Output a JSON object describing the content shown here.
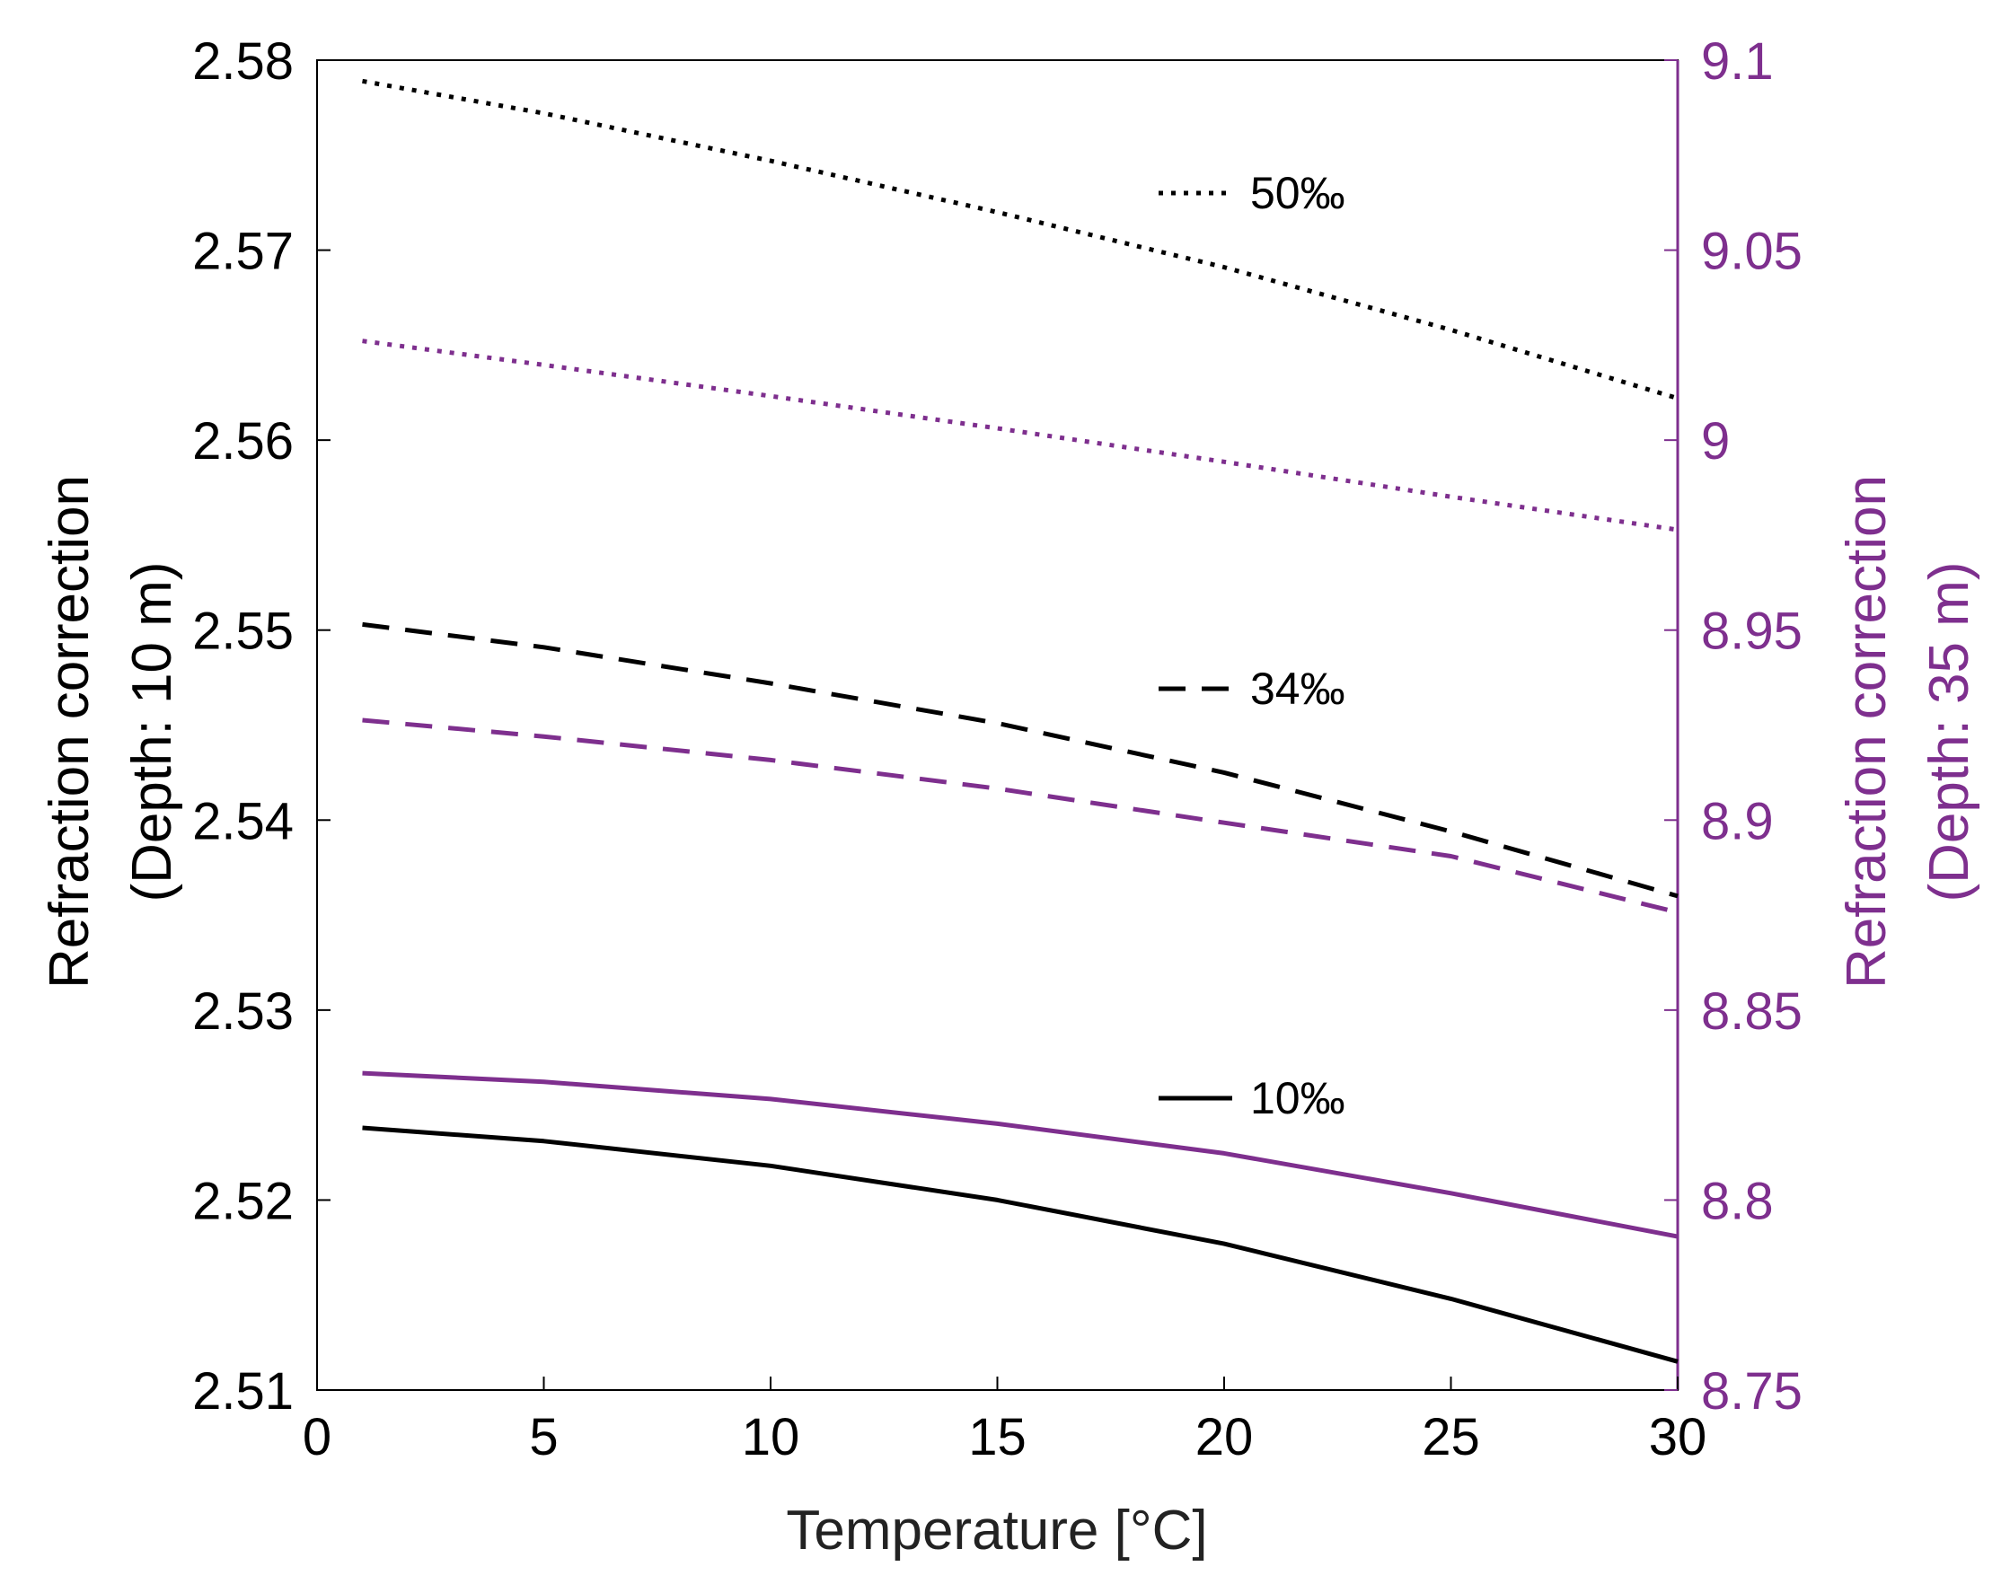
{
  "chart_data": {
    "type": "line",
    "title": "",
    "xlabel": "Temperature [°C]",
    "ylabel_left": [
      "Refraction correction",
      "(Depth: 10 m)"
    ],
    "ylabel_right": [
      "Refraction correction",
      "(Depth: 35 m)"
    ],
    "xlim": [
      0,
      30
    ],
    "ylim_left": [
      2.51,
      2.58
    ],
    "ylim_right": [
      8.75,
      9.1
    ],
    "x_ticks": [
      "0",
      "5",
      "10",
      "15",
      "20",
      "25",
      "30"
    ],
    "y_left_ticks": [
      "2.51",
      "2.52",
      "2.53",
      "2.54",
      "2.55",
      "2.56",
      "2.57",
      "2.58"
    ],
    "y_right_ticks": [
      "8.75",
      "8.8",
      "8.85",
      "8.9",
      "8.95",
      "9",
      "9.05",
      "9.1"
    ],
    "grid": false,
    "colors": {
      "left_axis": "#000000",
      "right_axis": "#7E2F8E"
    },
    "x": [
      1,
      5,
      10,
      15,
      20,
      25,
      30
    ],
    "series": [
      {
        "name": "50‰ (10 m)",
        "axis": "left",
        "style": "dotted",
        "values": [
          2.5789,
          2.5772,
          2.5747,
          2.572,
          2.5691,
          2.5658,
          2.5622
        ]
      },
      {
        "name": "34‰ (10 m)",
        "axis": "left",
        "style": "dashed",
        "values": [
          2.5503,
          2.5491,
          2.5472,
          2.5451,
          2.5425,
          2.5394,
          2.536
        ]
      },
      {
        "name": "10‰ (10 m)",
        "axis": "left",
        "style": "solid",
        "values": [
          2.5238,
          2.5231,
          2.5218,
          2.52,
          2.5177,
          2.5148,
          2.5115
        ]
      },
      {
        "name": "50‰ (35 m)",
        "axis": "right",
        "style": "dotted",
        "values": [
          9.0261,
          9.0198,
          9.0116,
          9.0031,
          8.9943,
          8.9851,
          8.9764
        ]
      },
      {
        "name": "34‰ (35 m)",
        "axis": "right",
        "style": "dashed",
        "values": [
          8.9263,
          8.922,
          8.9158,
          8.9083,
          8.8993,
          8.8905,
          8.8757
        ]
      },
      {
        "name": "10‰ (35 m)",
        "axis": "right",
        "style": "solid",
        "values": [
          8.8334,
          8.8311,
          8.8266,
          8.8201,
          8.8123,
          8.8018,
          8.7904
        ]
      }
    ],
    "legend": [
      {
        "label": "50‰",
        "style": "dotted"
      },
      {
        "label": "34‰",
        "style": "dashed"
      },
      {
        "label": "10‰",
        "style": "solid"
      }
    ]
  }
}
